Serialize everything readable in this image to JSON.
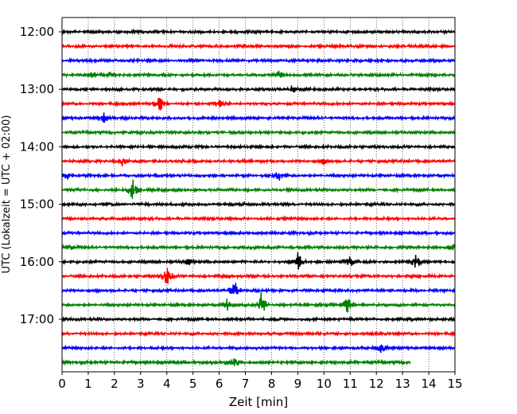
{
  "chart_data": {
    "type": "line",
    "title": "",
    "xlabel": "Zeit  [min]",
    "ylabel": "UTC (Lokalzeit = UTC + 02:00)",
    "xlim": [
      0,
      15
    ],
    "x_ticks": [
      "0",
      "1",
      "2",
      "3",
      "4",
      "5",
      "6",
      "7",
      "8",
      "9",
      "10",
      "11",
      "12",
      "13",
      "14",
      "15"
    ],
    "y_ticks": [
      "12:00",
      "13:00",
      "14:00",
      "15:00",
      "16:00",
      "17:00"
    ],
    "grid": "vertical dotted",
    "color_cycle": [
      "#000000",
      "#ff0000",
      "#0000ff",
      "#008000"
    ],
    "trace_interval_min": 15,
    "traces": [
      {
        "start": "12:00",
        "end_min": 15,
        "events": []
      },
      {
        "start": "12:15",
        "end_min": 15,
        "events": []
      },
      {
        "start": "12:30",
        "end_min": 15,
        "events": []
      },
      {
        "start": "12:45",
        "end_min": 15,
        "events": [
          [
            1.2,
            0.6
          ],
          [
            1.8,
            0.4
          ],
          [
            8.3,
            0.6
          ]
        ]
      },
      {
        "start": "13:00",
        "end_min": 15,
        "events": [
          [
            8.8,
            0.6
          ]
        ]
      },
      {
        "start": "13:15",
        "end_min": 15,
        "events": [
          [
            3.7,
            1.6
          ],
          [
            6.0,
            0.5
          ]
        ]
      },
      {
        "start": "13:30",
        "end_min": 15,
        "events": [
          [
            1.6,
            0.6
          ]
        ]
      },
      {
        "start": "13:45",
        "end_min": 15,
        "events": []
      },
      {
        "start": "14:00",
        "end_min": 15,
        "events": []
      },
      {
        "start": "14:15",
        "end_min": 15,
        "events": [
          [
            2.3,
            0.6
          ],
          [
            10.0,
            0.4
          ]
        ]
      },
      {
        "start": "14:30",
        "end_min": 15,
        "events": [
          [
            0.2,
            0.5
          ],
          [
            8.3,
            0.7
          ]
        ]
      },
      {
        "start": "14:45",
        "end_min": 15,
        "events": [
          [
            2.7,
            1.6
          ]
        ]
      },
      {
        "start": "15:00",
        "end_min": 15,
        "events": []
      },
      {
        "start": "15:15",
        "end_min": 15,
        "events": []
      },
      {
        "start": "15:30",
        "end_min": 15,
        "events": []
      },
      {
        "start": "15:45",
        "end_min": 15,
        "events": [
          [
            0.3,
            0.4
          ],
          [
            14.9,
            0.6
          ]
        ]
      },
      {
        "start": "16:00",
        "end_min": 15,
        "events": [
          [
            4.8,
            0.6
          ],
          [
            9.0,
            1.5
          ],
          [
            11.0,
            0.7
          ],
          [
            13.5,
            1.1
          ]
        ]
      },
      {
        "start": "16:15",
        "end_min": 15,
        "events": [
          [
            4.0,
            1.6
          ],
          [
            6.3,
            0.3
          ]
        ]
      },
      {
        "start": "16:30",
        "end_min": 15,
        "events": [
          [
            6.6,
            1.3
          ]
        ]
      },
      {
        "start": "16:45",
        "end_min": 15,
        "events": [
          [
            6.3,
            0.8
          ],
          [
            7.6,
            1.8
          ],
          [
            10.9,
            1.2
          ]
        ]
      },
      {
        "start": "17:00",
        "end_min": 15,
        "events": []
      },
      {
        "start": "17:15",
        "end_min": 15,
        "events": []
      },
      {
        "start": "17:30",
        "end_min": 15,
        "events": [
          [
            12.2,
            0.9
          ]
        ]
      },
      {
        "start": "17:45",
        "end_min": 13.3,
        "events": [
          [
            6.6,
            0.6
          ]
        ]
      }
    ]
  }
}
